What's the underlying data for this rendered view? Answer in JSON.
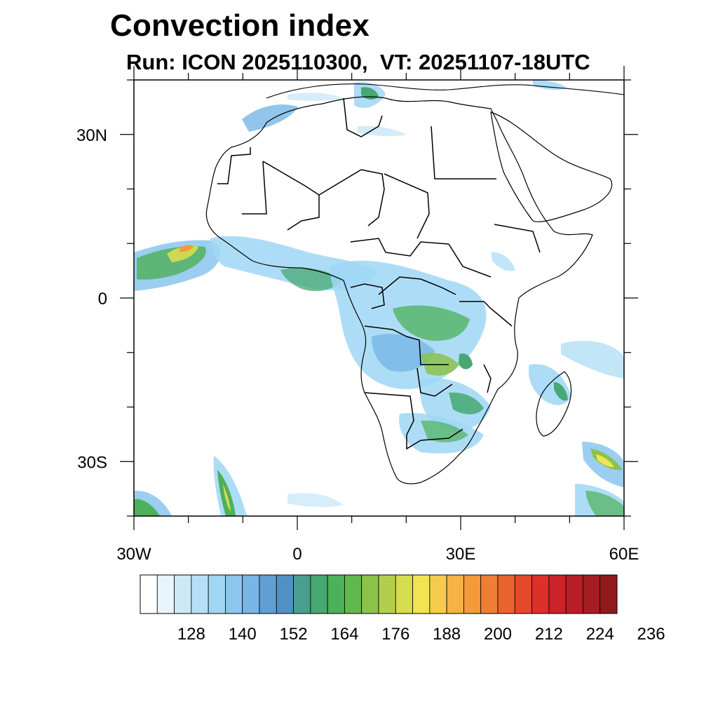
{
  "title": "Convection index",
  "subtitle": "Run: ICON 2025110300,  VT: 20251107-18UTC",
  "map": {
    "lon_range": [
      -30,
      60
    ],
    "lat_range": [
      -40,
      40
    ],
    "lon_labels": [
      {
        "lon": -30,
        "text": "30W"
      },
      {
        "lon": 0,
        "text": "0"
      },
      {
        "lon": 30,
        "text": "30E"
      },
      {
        "lon": 60,
        "text": "60E"
      }
    ],
    "lat_labels": [
      {
        "lat": 30,
        "text": "30N"
      },
      {
        "lat": 0,
        "text": "0"
      },
      {
        "lat": -30,
        "text": "30S"
      }
    ]
  },
  "colorbar": {
    "colors": [
      "#ffffff",
      "#e8f5fc",
      "#cde9f8",
      "#b7e0f6",
      "#9fd7f4",
      "#8ac6ee",
      "#77b6e6",
      "#5f9fd6",
      "#5290c4",
      "#4a9e8e",
      "#47a872",
      "#4db05a",
      "#62b84c",
      "#8cc24a",
      "#b2cf4c",
      "#d8dd4d",
      "#f0e354",
      "#f6cc4c",
      "#f5b245",
      "#f39a3d",
      "#ee7e33",
      "#e9642d",
      "#e44a29",
      "#dc3029",
      "#cc2229",
      "#b81e27",
      "#a61c23",
      "#8f1a1c"
    ],
    "labels": [
      "128",
      "140",
      "152",
      "164",
      "176",
      "188",
      "200",
      "212",
      "224",
      "236"
    ]
  }
}
